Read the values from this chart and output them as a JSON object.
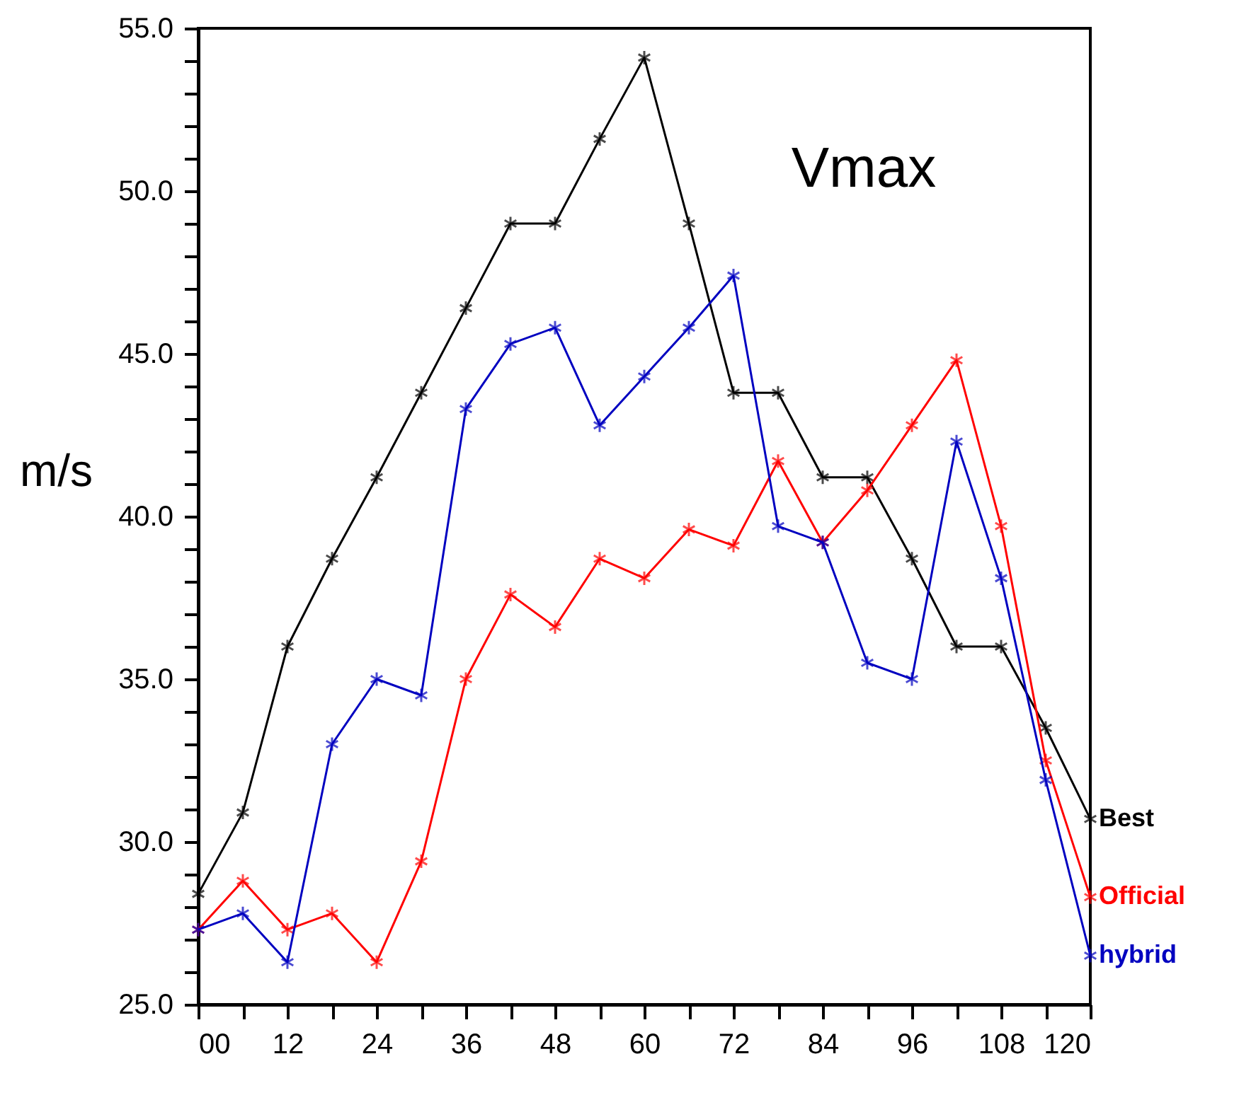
{
  "chart_data": {
    "type": "line",
    "title": "Vmax",
    "ylabel": "m/s",
    "x": [
      0,
      6,
      12,
      18,
      24,
      30,
      36,
      42,
      48,
      54,
      60,
      66,
      72,
      78,
      84,
      90,
      96,
      102,
      108,
      114,
      120
    ],
    "series": [
      {
        "name": "Best",
        "color": "#000000",
        "values": [
          28.4,
          30.9,
          36.0,
          38.7,
          41.2,
          43.8,
          46.4,
          49.0,
          49.0,
          51.6,
          54.1,
          49.0,
          43.8,
          43.8,
          41.2,
          41.2,
          38.7,
          36.0,
          36.0,
          33.5,
          30.7
        ]
      },
      {
        "name": "Official",
        "color": "#ff0000",
        "values": [
          27.3,
          28.8,
          27.3,
          27.8,
          26.3,
          29.4,
          35.0,
          37.6,
          36.6,
          38.7,
          38.1,
          39.6,
          39.1,
          41.7,
          39.2,
          40.8,
          42.8,
          44.8,
          39.7,
          32.5,
          28.3
        ]
      },
      {
        "name": "hybrid",
        "color": "#0000c0",
        "values": [
          27.3,
          27.8,
          26.3,
          33.0,
          35.0,
          34.5,
          43.3,
          45.3,
          45.8,
          42.8,
          44.3,
          45.8,
          47.4,
          39.7,
          39.2,
          35.5,
          35.0,
          42.3,
          38.1,
          31.9,
          26.5
        ]
      }
    ],
    "xlim": [
      0,
      120
    ],
    "xticks": [
      {
        "value": 0,
        "label": "00"
      },
      {
        "value": 6,
        "label": null
      },
      12,
      {
        "value": 18,
        "label": null
      },
      24,
      {
        "value": 30,
        "label": null
      },
      36,
      {
        "value": 42,
        "label": null
      },
      48,
      {
        "value": 54,
        "label": null
      },
      60,
      {
        "value": 66,
        "label": null
      },
      72,
      {
        "value": 78,
        "label": null
      },
      84,
      {
        "value": 90,
        "label": null
      },
      96,
      {
        "value": 102,
        "label": null
      },
      108,
      {
        "value": 114,
        "label": null
      },
      120
    ],
    "ylim": [
      25,
      55
    ],
    "yticks": [
      {
        "value": 25,
        "label": "25.0"
      },
      {
        "value": 26,
        "label": null
      },
      {
        "value": 27,
        "label": null
      },
      {
        "value": 28,
        "label": null
      },
      {
        "value": 29,
        "label": null
      },
      {
        "value": 30,
        "label": "30.0"
      },
      {
        "value": 31,
        "label": null
      },
      {
        "value": 32,
        "label": null
      },
      {
        "value": 33,
        "label": null
      },
      {
        "value": 34,
        "label": null
      },
      {
        "value": 35,
        "label": "35.0"
      },
      {
        "value": 36,
        "label": null
      },
      {
        "value": 37,
        "label": null
      },
      {
        "value": 38,
        "label": null
      },
      {
        "value": 39,
        "label": null
      },
      {
        "value": 40,
        "label": "40.0"
      },
      {
        "value": 41,
        "label": null
      },
      {
        "value": 42,
        "label": null
      },
      {
        "value": 43,
        "label": null
      },
      {
        "value": 44,
        "label": null
      },
      {
        "value": 45,
        "label": "45.0"
      },
      {
        "value": 46,
        "label": null
      },
      {
        "value": 47,
        "label": null
      },
      {
        "value": 48,
        "label": null
      },
      {
        "value": 49,
        "label": null
      },
      {
        "value": 50,
        "label": "50.0"
      },
      {
        "value": 51,
        "label": null
      },
      {
        "value": 52,
        "label": null
      },
      {
        "value": 53,
        "label": null
      },
      {
        "value": 54,
        "label": null
      },
      {
        "value": 55,
        "label": "55.0"
      }
    ],
    "grid": false,
    "marker": "cross",
    "line_style": "solid"
  }
}
